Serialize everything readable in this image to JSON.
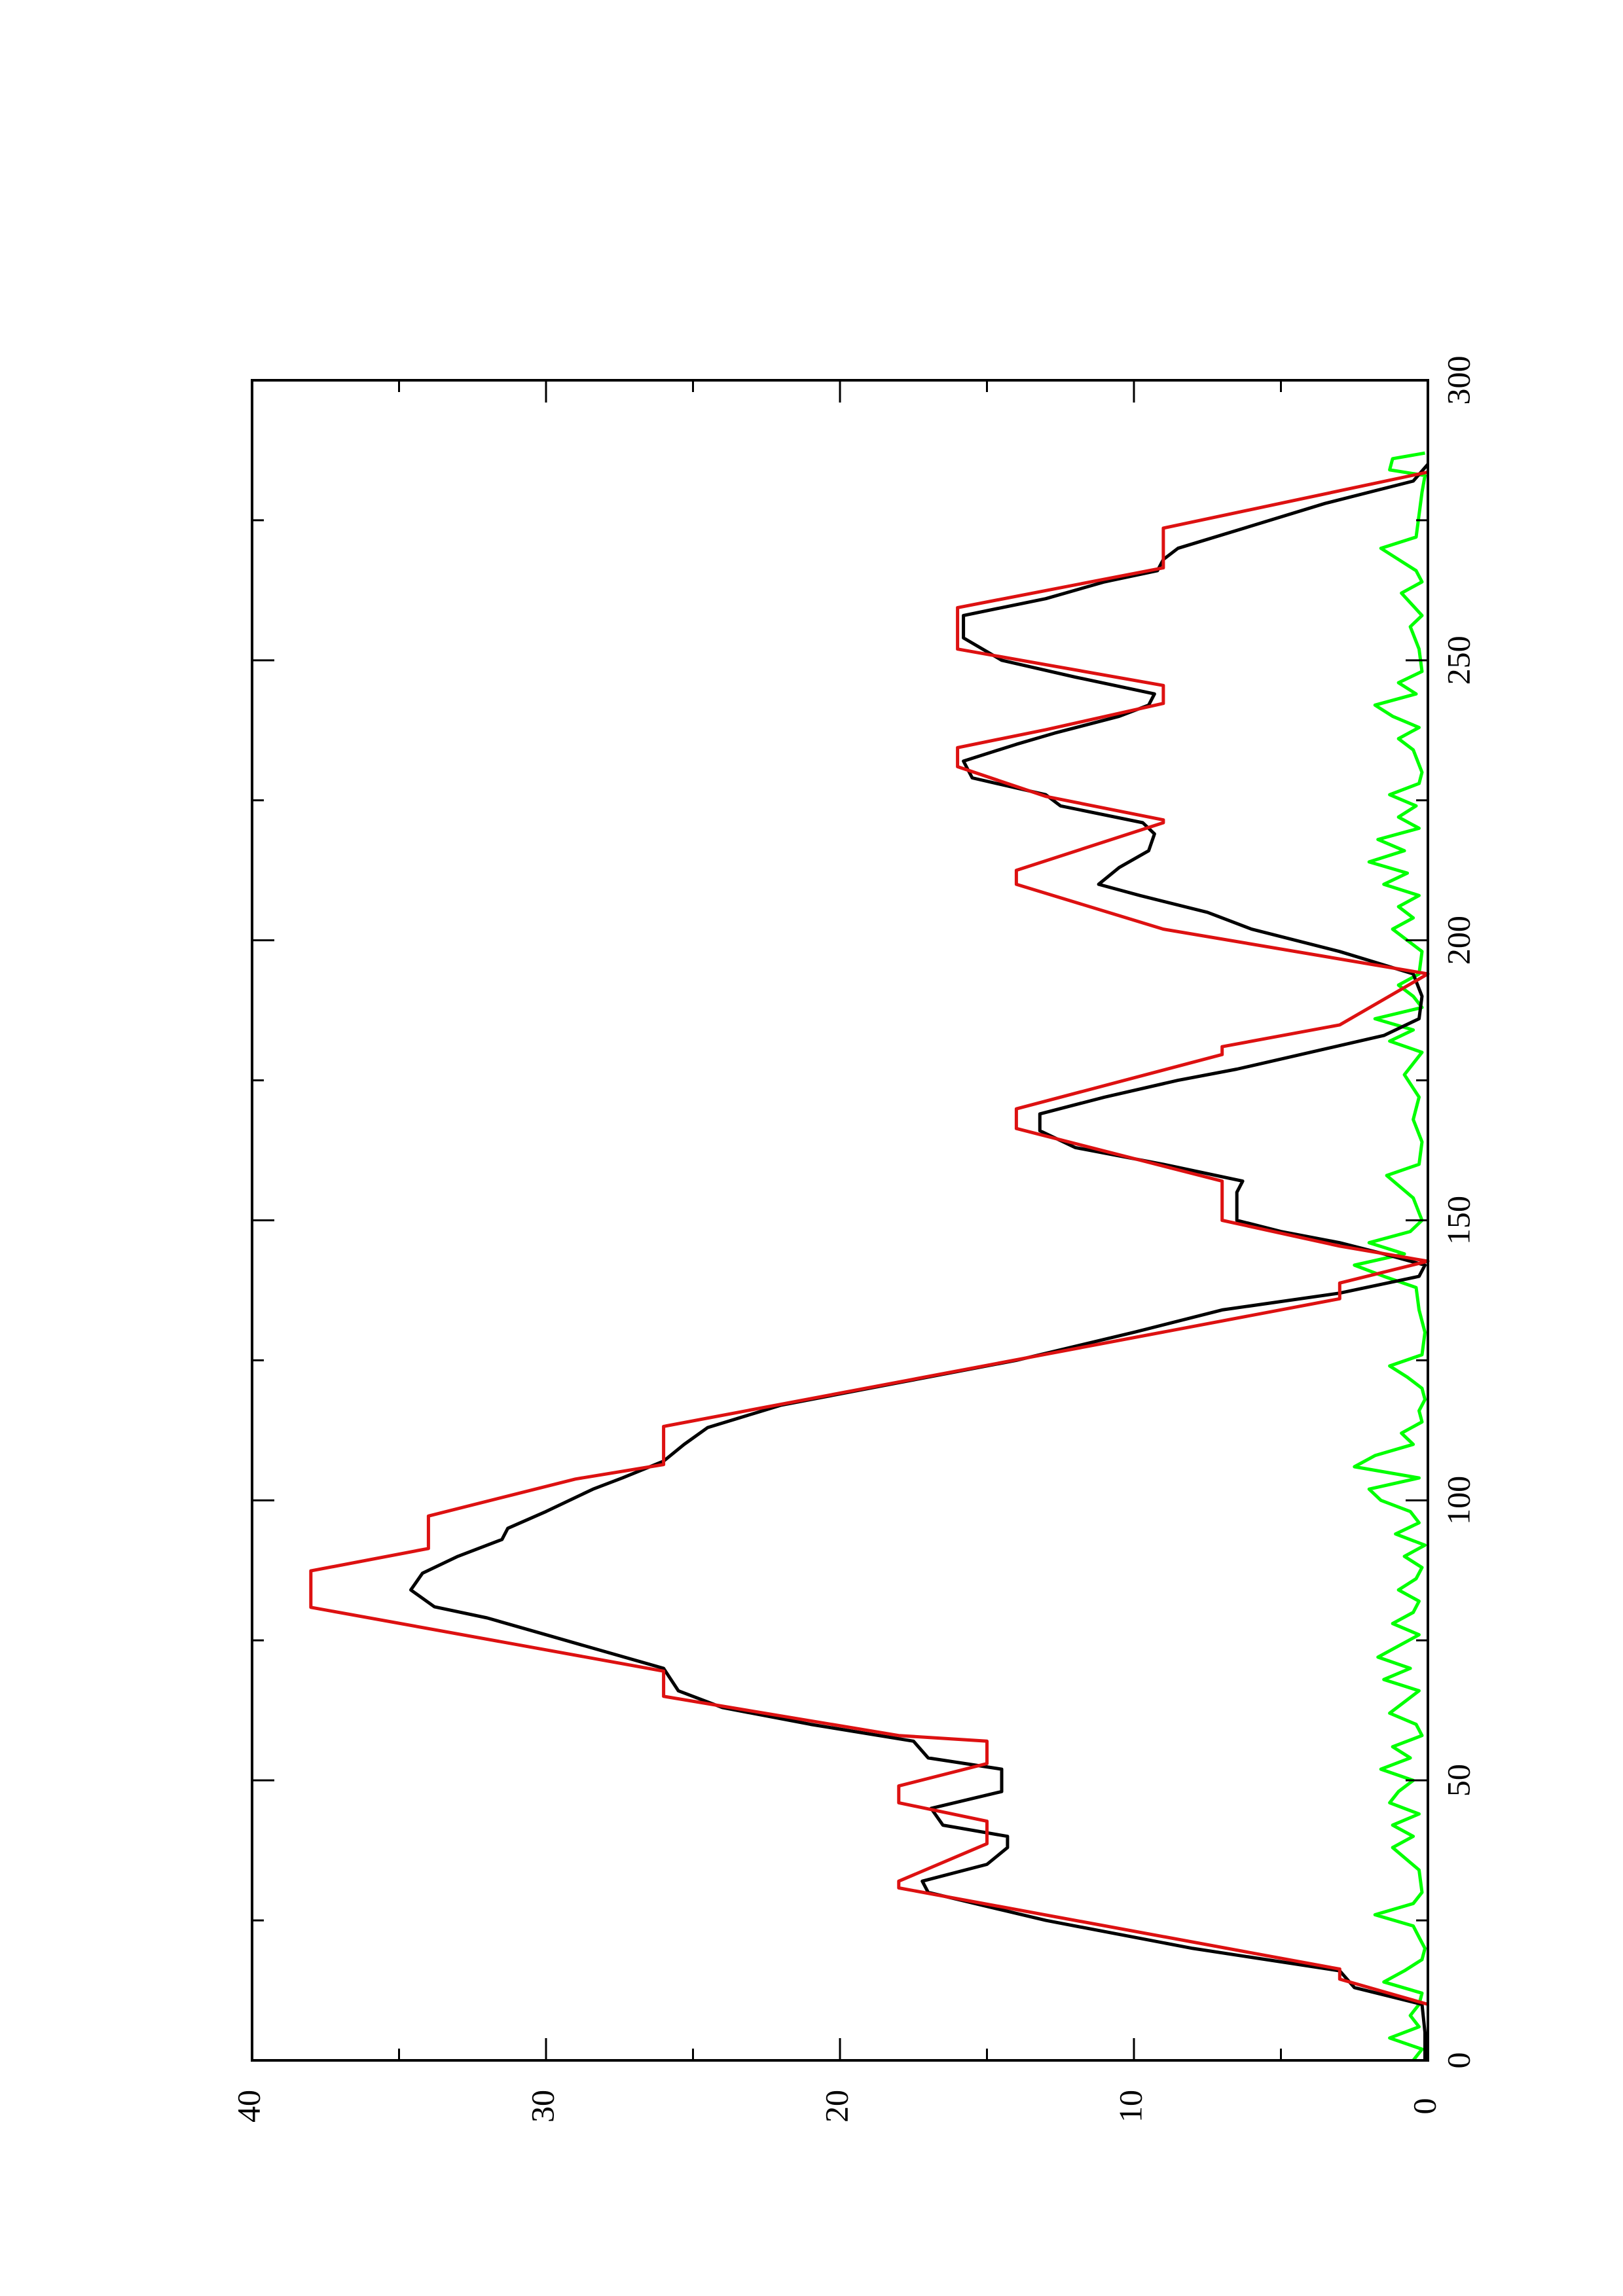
{
  "chart_data": {
    "type": "line",
    "xlim": [
      0,
      300
    ],
    "xticks": [
      0,
      50,
      100,
      150,
      200,
      250,
      300
    ],
    "xminor": [
      25,
      75,
      125,
      175,
      225,
      275
    ],
    "ylim": [
      0,
      40
    ],
    "yticks": [
      0,
      10,
      20,
      30,
      40
    ],
    "yminor": [
      5,
      15,
      25,
      35
    ],
    "rotated": true,
    "series": [
      {
        "color": "#00ff00",
        "x": [
          0,
          2,
          4,
          6,
          8,
          10,
          12,
          14,
          16,
          18,
          20,
          22,
          24,
          26,
          28,
          30,
          34,
          38,
          40,
          42,
          44,
          46,
          48,
          50,
          52,
          54,
          56,
          58,
          60,
          62,
          64,
          66,
          68,
          70,
          72,
          74,
          76,
          78,
          80,
          82,
          84,
          86,
          88,
          90,
          92,
          94,
          96,
          98,
          100,
          102,
          104,
          106,
          108,
          110,
          112,
          114,
          116,
          118,
          120,
          122,
          124,
          126,
          130,
          134,
          138,
          140,
          142,
          144,
          146,
          148,
          150,
          154,
          158,
          160,
          164,
          168,
          172,
          176,
          180,
          182,
          184,
          186,
          188,
          190,
          192,
          194,
          198,
          202,
          204,
          206,
          208,
          210,
          212,
          214,
          216,
          218,
          220,
          222,
          224,
          226,
          228,
          230,
          234,
          236,
          238,
          240,
          242,
          244,
          246,
          248,
          252,
          256,
          258,
          262,
          264,
          266,
          268,
          270,
          272,
          276,
          280,
          283,
          284,
          286,
          287
        ],
        "values": [
          0.5,
          0.2,
          1.3,
          0.3,
          0.6,
          0.3,
          0.2,
          1.5,
          0.8,
          0.2,
          0.1,
          0.3,
          0.5,
          1.8,
          0.5,
          0.2,
          0.3,
          1.2,
          0.5,
          1.2,
          0.3,
          1.3,
          1.0,
          0.5,
          1.6,
          0.6,
          1.2,
          0.2,
          0.4,
          1.3,
          0.8,
          0.3,
          1.5,
          0.6,
          1.7,
          1.0,
          0.3,
          1.2,
          0.5,
          0.3,
          1.0,
          0.4,
          0.2,
          0.8,
          0.1,
          1.1,
          0.3,
          0.6,
          1.6,
          2.0,
          0.3,
          2.5,
          1.8,
          0.5,
          0.9,
          0.2,
          0.3,
          0.1,
          0.2,
          0.7,
          1.3,
          0.2,
          0.1,
          0.3,
          0.4,
          1.5,
          2.5,
          0.8,
          2.0,
          0.6,
          0.2,
          0.5,
          1.4,
          0.3,
          0.2,
          0.5,
          0.3,
          0.8,
          0.2,
          1.3,
          0.5,
          1.8,
          0.2,
          0.5,
          1.0,
          0.3,
          0.2,
          1.2,
          0.5,
          1.0,
          0.3,
          1.5,
          0.7,
          2.0,
          0.8,
          1.7,
          0.3,
          1.0,
          0.4,
          1.3,
          0.3,
          0.2,
          0.5,
          1.0,
          0.3,
          1.2,
          1.8,
          0.4,
          1.0,
          0.2,
          0.3,
          0.6,
          0.2,
          0.9,
          0.2,
          0.4,
          1.0,
          1.6,
          0.4,
          0.3,
          0.2,
          0.1,
          1.3,
          1.2,
          0.1
        ]
      },
      {
        "color": "#000000",
        "x": [
          0,
          5,
          10,
          13,
          16,
          20,
          25,
          30,
          32,
          35,
          38,
          40,
          42,
          45,
          48,
          52,
          54,
          57,
          60,
          63,
          66,
          70,
          73,
          76,
          79,
          81,
          84,
          87,
          90,
          93,
          95,
          98,
          102,
          104,
          107,
          110,
          113,
          117,
          121,
          125,
          130,
          134,
          137,
          140,
          142,
          144,
          146,
          148,
          150,
          155,
          157,
          160,
          163,
          166,
          169,
          172,
          175,
          177,
          180,
          183,
          186,
          190,
          194,
          198,
          202,
          205,
          208,
          210,
          213,
          216,
          219,
          221,
          224,
          226,
          229,
          232,
          235,
          237,
          240,
          242,
          244,
          247,
          250,
          254,
          258,
          261,
          264,
          266,
          268,
          270,
          274,
          278,
          282,
          285
        ],
        "values": [
          0.1,
          0.1,
          0.2,
          2.5,
          3,
          8,
          13,
          17,
          17.2,
          15,
          14.3,
          14.3,
          16.5,
          16.9,
          14.5,
          14.5,
          17,
          17.5,
          21,
          24,
          25.5,
          26,
          28,
          30,
          32,
          33.8,
          34.6,
          34.2,
          33,
          31.5,
          31.3,
          30,
          28.4,
          27.4,
          26,
          25.3,
          24.5,
          22,
          18,
          14,
          10,
          7,
          3,
          0.3,
          0.1,
          1.5,
          3,
          5,
          6.5,
          6.5,
          6.3,
          9,
          12,
          13.2,
          13.2,
          11,
          8.5,
          6.5,
          4,
          1.5,
          0.3,
          0.2,
          0.5,
          3,
          6,
          7.5,
          9.8,
          11.2,
          10.5,
          9.5,
          9.3,
          9.7,
          12.5,
          13,
          15.5,
          15.8,
          14,
          12.7,
          10.5,
          9.5,
          9.3,
          12,
          14.5,
          15.8,
          15.8,
          13,
          11,
          9.2,
          9,
          8.5,
          6,
          3.5,
          0.5,
          0
        ]
      },
      {
        "color": "#dd1111",
        "x": [
          10,
          14.5,
          16.3,
          30.8,
          32,
          38.7,
          42.7,
          46,
          49,
          53,
          57,
          58,
          65,
          69.5,
          80.9,
          87.4,
          91.4,
          97.2,
          103.8,
          106.4,
          113.2,
          136,
          138.8,
          142.7,
          145.4,
          150,
          157,
          166.4,
          169.9,
          179.6,
          181,
          184.9,
          194,
          202,
          210,
          212.5,
          221,
          221.5,
          225.7,
          231,
          234.4,
          237.6,
          242.3,
          245.5,
          252,
          259.4,
          266.5,
          273.6,
          283.6
        ],
        "values": [
          0,
          3,
          3,
          18,
          18,
          15,
          15,
          18,
          18,
          15,
          15,
          18,
          26,
          26,
          38,
          38,
          34,
          34,
          29,
          26,
          26,
          3,
          3,
          0,
          3,
          7,
          7,
          14,
          14,
          7,
          7,
          3,
          0,
          9,
          14,
          14,
          9,
          9,
          13,
          16,
          16,
          13,
          9,
          9,
          16,
          16,
          9,
          9,
          0
        ]
      }
    ]
  }
}
